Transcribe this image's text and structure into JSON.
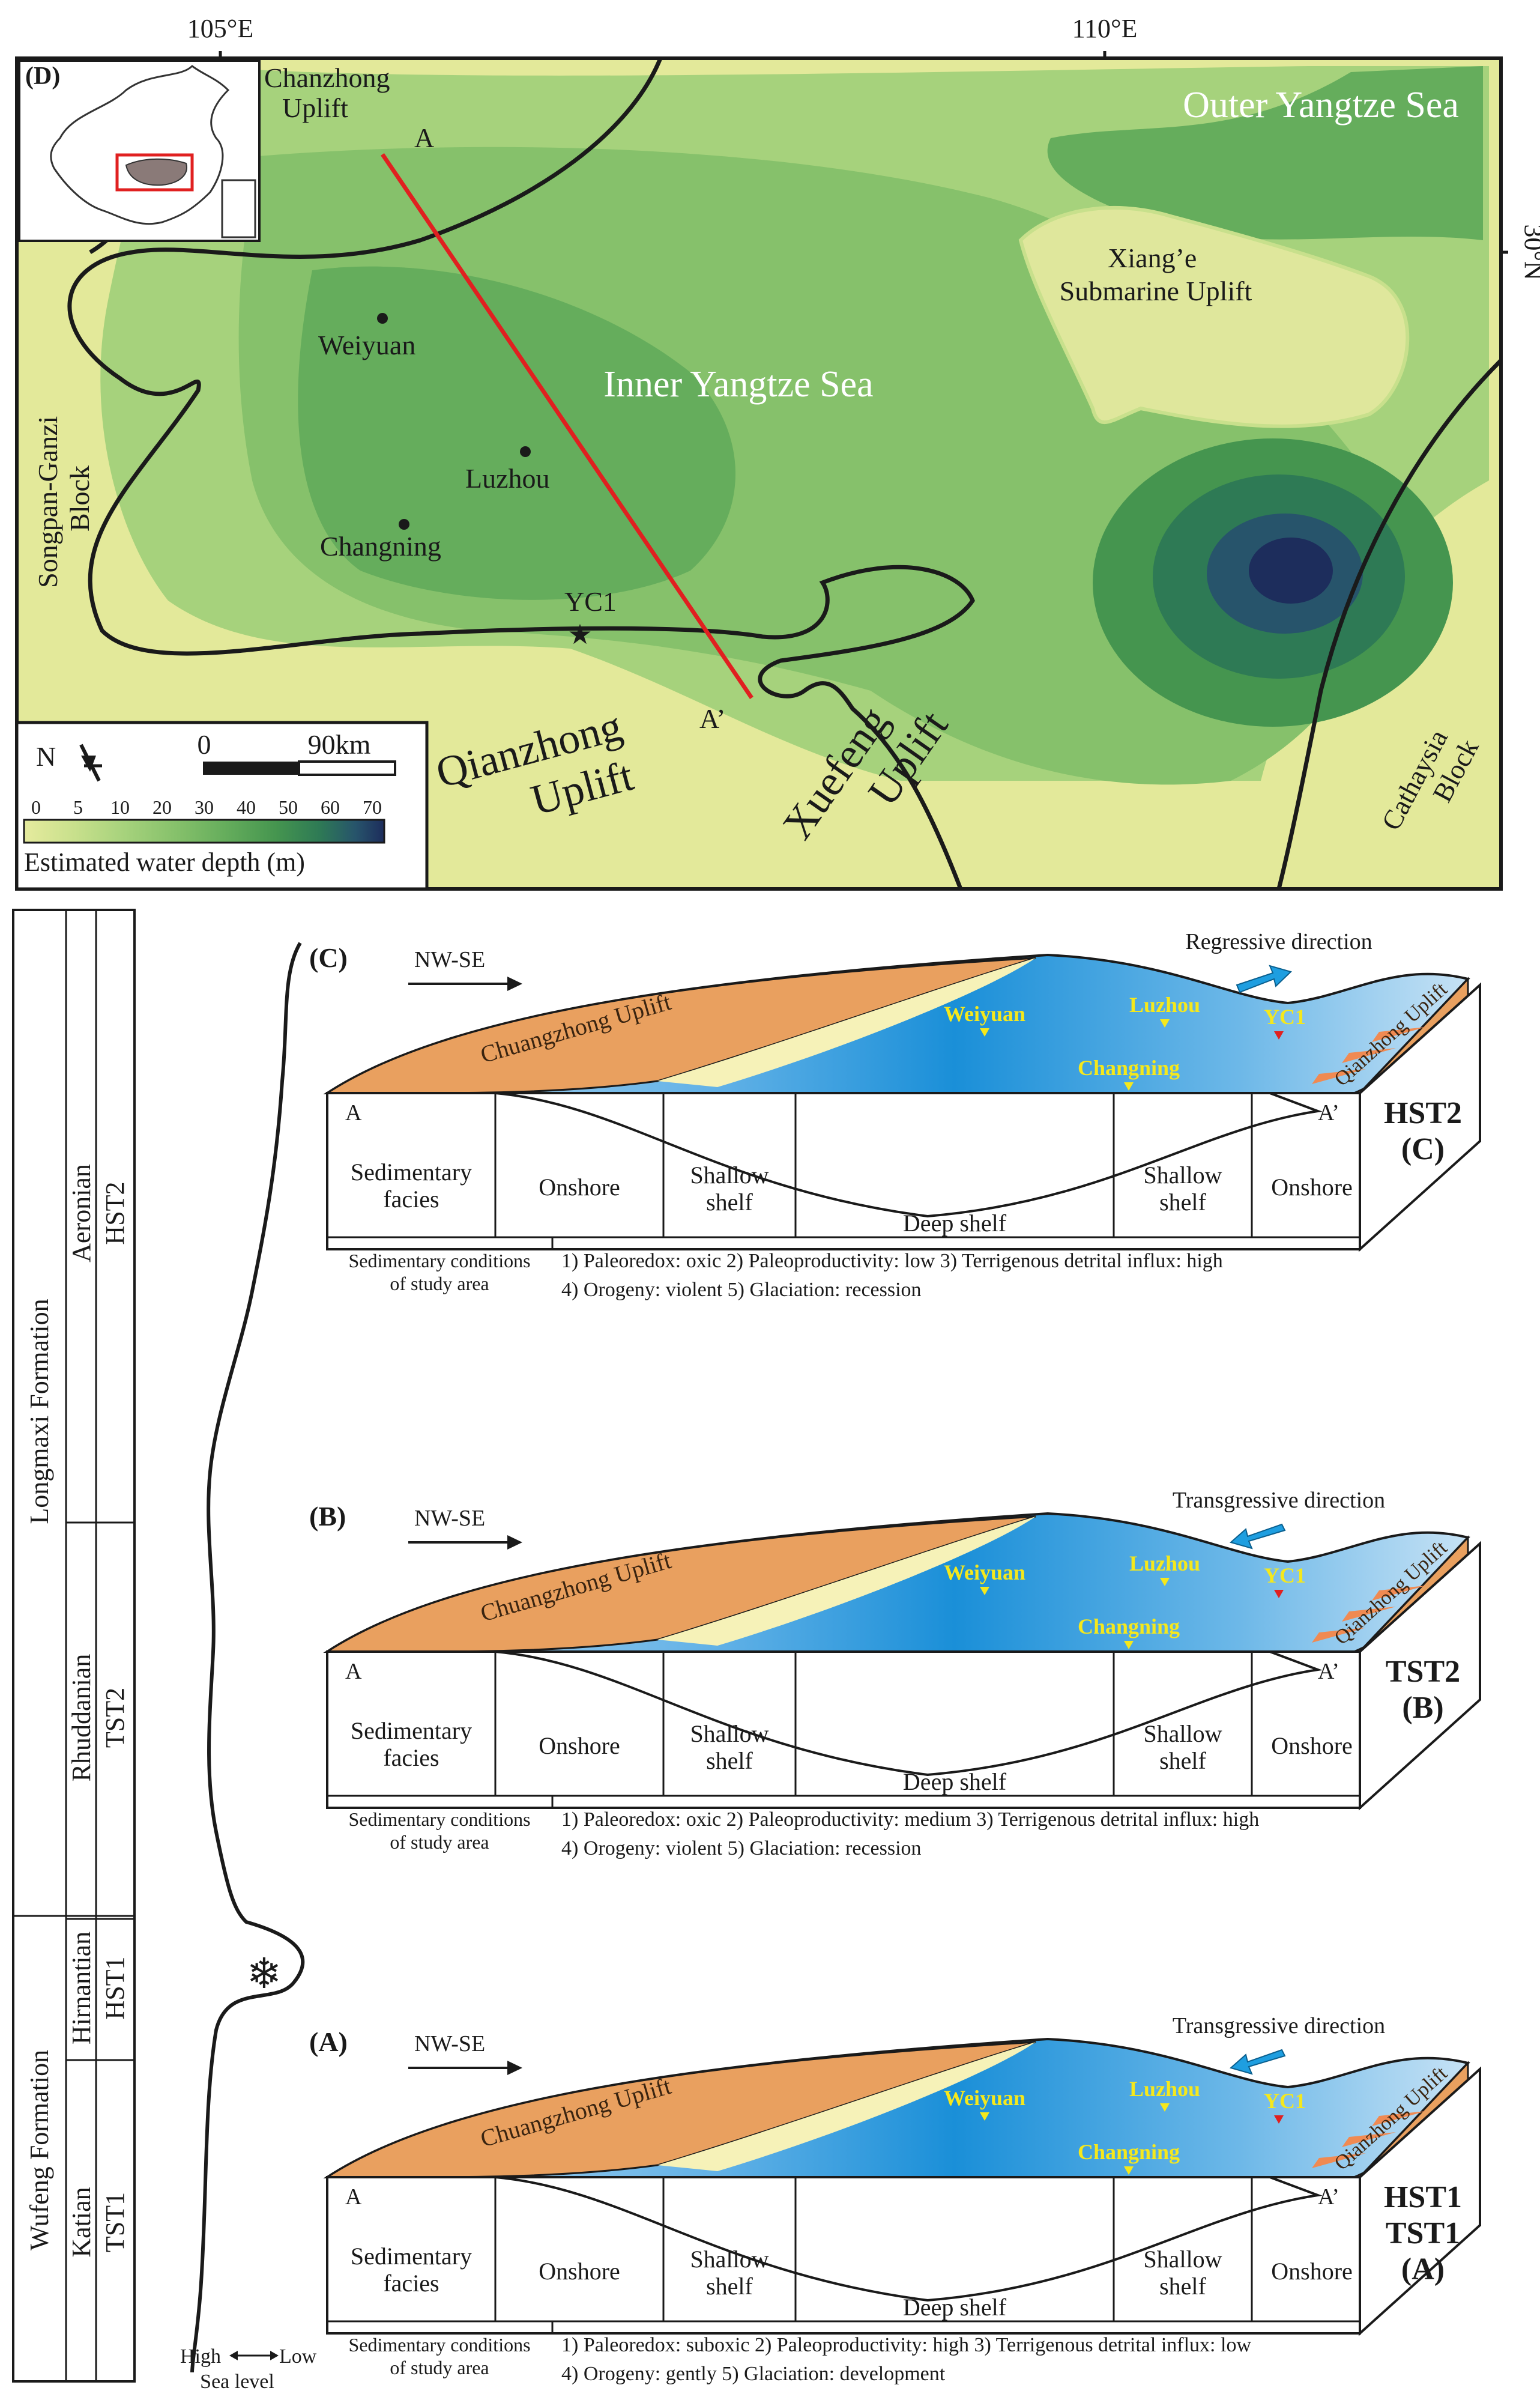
{
  "map": {
    "panel_label": "(D)",
    "lon_labels": [
      "105°E",
      "110°E"
    ],
    "lat_label": "30°N",
    "regions": {
      "chanzhong_uplift": [
        "Chanzhong",
        "Uplift"
      ],
      "outer_yangtze_sea": "Outer Yangtze Sea",
      "xiange_uplift": [
        "Xiang’e",
        "Submarine Uplift"
      ],
      "inner_yangtze_sea": "Inner Yangtze Sea",
      "songpan_block": [
        "Songpan-Ganzi",
        "Block"
      ],
      "qianzhong_uplift": [
        "Qianzhong",
        "Uplift"
      ],
      "xuefeng_uplift": [
        "Xuefeng",
        "Uplift"
      ],
      "cathaysia_block": [
        "Cathaysia",
        "Block"
      ]
    },
    "cities": [
      "Weiyuan",
      "Luzhou",
      "Changning"
    ],
    "well": "YC1",
    "section_start": "A",
    "section_end": "A’",
    "north_label": "N",
    "scale": {
      "zero": "0",
      "distance": "90km"
    },
    "legend": {
      "ticks": [
        "0",
        "5",
        "10",
        "20",
        "30",
        "40",
        "50",
        "60",
        "70"
      ],
      "title": "Estimated water depth (m)",
      "colors": [
        "#e6eb9e",
        "#c8e08c",
        "#a6d27c",
        "#86c16b",
        "#65ad5c",
        "#45954f",
        "#2e7a55",
        "#27546b",
        "#1d2d5c"
      ]
    }
  },
  "column": {
    "formations": [
      "Longmaxi Formation",
      "Wufeng Formation"
    ],
    "stages": [
      "Aeronian",
      "Rhuddanian",
      "Hirnantian",
      "Katian"
    ],
    "systems_tracts": [
      "HST2",
      "TST2",
      "HST1",
      "TST1"
    ],
    "sea_level_label": {
      "high": "High",
      "low": "Low",
      "caption": "Sea level"
    },
    "glaciation_icon": "snowflake-icon"
  },
  "blocks": [
    {
      "label": "(C)",
      "direction": "NW-SE",
      "movement": "Regressive direction",
      "uplift_left": "Chuangzhong Uplift",
      "uplift_right": "Qianzhong Uplift",
      "cities": [
        "Weiyuan",
        "Luzhou",
        "Changning"
      ],
      "well": "YC1",
      "section_start": "A",
      "section_end": "A’",
      "facies": [
        "Onshore",
        "Shallow shelf",
        "Deep shelf",
        "Shallow shelf",
        "Onshore"
      ],
      "facies_header": [
        "Sedimentary",
        "facies"
      ],
      "cond_header": [
        "Sedimentary conditions",
        "of study area"
      ],
      "cond_lines": [
        "1) Paleoredox: oxic    2) Paleoproductivity: low    3) Terrigenous detrital influx: high",
        "4) Orogeny: violent      5) Glaciation: recession"
      ],
      "side_label": [
        "HST2",
        "(C)"
      ]
    },
    {
      "label": "(B)",
      "direction": "NW-SE",
      "movement": "Transgressive direction",
      "uplift_left": "Chuangzhong Uplift",
      "uplift_right": "Qianzhong Uplift",
      "cities": [
        "Weiyuan",
        "Luzhou",
        "Changning"
      ],
      "well": "YC1",
      "section_start": "A",
      "section_end": "A’",
      "facies": [
        "Onshore",
        "Shallow shelf",
        "Deep shelf",
        "Shallow shelf",
        "Onshore"
      ],
      "facies_header": [
        "Sedimentary",
        "facies"
      ],
      "cond_header": [
        "Sedimentary conditions",
        "of study area"
      ],
      "cond_lines": [
        "1) Paleoredox: oxic 2) Paleoproductivity: medium 3) Terrigenous detrital influx: high",
        "4) Orogeny: violent 5) Glaciation: recession"
      ],
      "side_label": [
        "TST2",
        "(B)"
      ]
    },
    {
      "label": "(A)",
      "direction": "NW-SE",
      "movement": "Transgressive direction",
      "uplift_left": "Chuangzhong Uplift",
      "uplift_right": "Qianzhong Uplift",
      "cities": [
        "Weiyuan",
        "Luzhou",
        "Changning"
      ],
      "well": "YC1",
      "section_start": "A",
      "section_end": "A’",
      "facies": [
        "Onshore",
        "Shallow shelf",
        "Deep shelf",
        "Shallow shelf",
        "Onshore"
      ],
      "facies_header": [
        "Sedimentary",
        "facies"
      ],
      "cond_header": [
        "Sedimentary conditions",
        "of study area"
      ],
      "cond_lines": [
        "1) Paleoredox: suboxic  2) Paleoproductivity: high    3) Terrigenous detrital influx: low",
        "4) Orogeny: gently         5) Glaciation: development"
      ],
      "side_label": [
        "HST1",
        "TST1",
        "(A)"
      ]
    }
  ]
}
